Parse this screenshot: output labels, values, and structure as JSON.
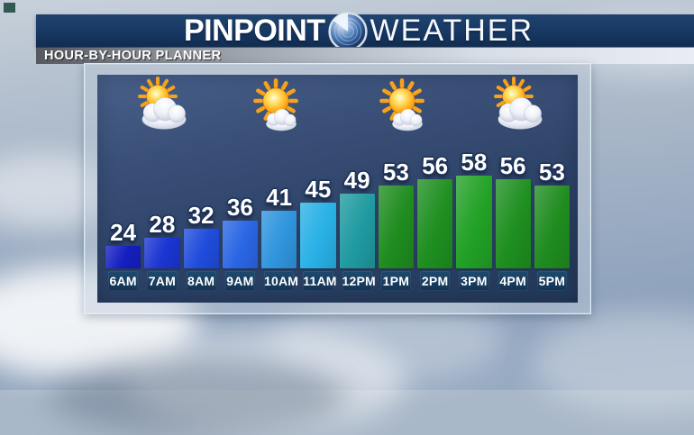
{
  "banner": {
    "brand_bold": "PINPOINT",
    "brand_light": "WEATHER",
    "globe_icon": "radar-globe-icon"
  },
  "subheader": {
    "label": "HOUR-BY-HOUR PLANNER"
  },
  "chart_data": {
    "type": "bar",
    "title": "HOUR-BY-HOUR PLANNER",
    "categories": [
      "6AM",
      "7AM",
      "8AM",
      "9AM",
      "10AM",
      "11AM",
      "12PM",
      "1PM",
      "2PM",
      "3PM",
      "4PM",
      "5PM"
    ],
    "values": [
      24,
      28,
      32,
      36,
      41,
      45,
      49,
      53,
      56,
      58,
      56,
      53
    ],
    "value_labels_shown": true,
    "bar_colors": [
      "#141fc0",
      "#1a35d2",
      "#1f4cdc",
      "#2a66e4",
      "#2f95dd",
      "#29b1e6",
      "#1f9aa0",
      "#1f8c1f",
      "#1e8f20",
      "#22a126",
      "#1e8f20",
      "#1f8c1f"
    ],
    "condition_icons": [
      "partly-sunny",
      "mostly-sunny",
      "mostly-sunny",
      "partly-sunny"
    ],
    "ylim": [
      0,
      65
    ],
    "grid": false,
    "legend": false
  },
  "colors": {
    "banner_navy": "#16365f",
    "panel_blue": "#2e4468",
    "time_box_navy": "#16395a",
    "frame_gray": "#bcc8d4",
    "cold_blue": "#141fc0",
    "mild_cyan": "#29b1e6",
    "teal": "#1f9aa0",
    "warm_green": "#1f8c1f"
  }
}
